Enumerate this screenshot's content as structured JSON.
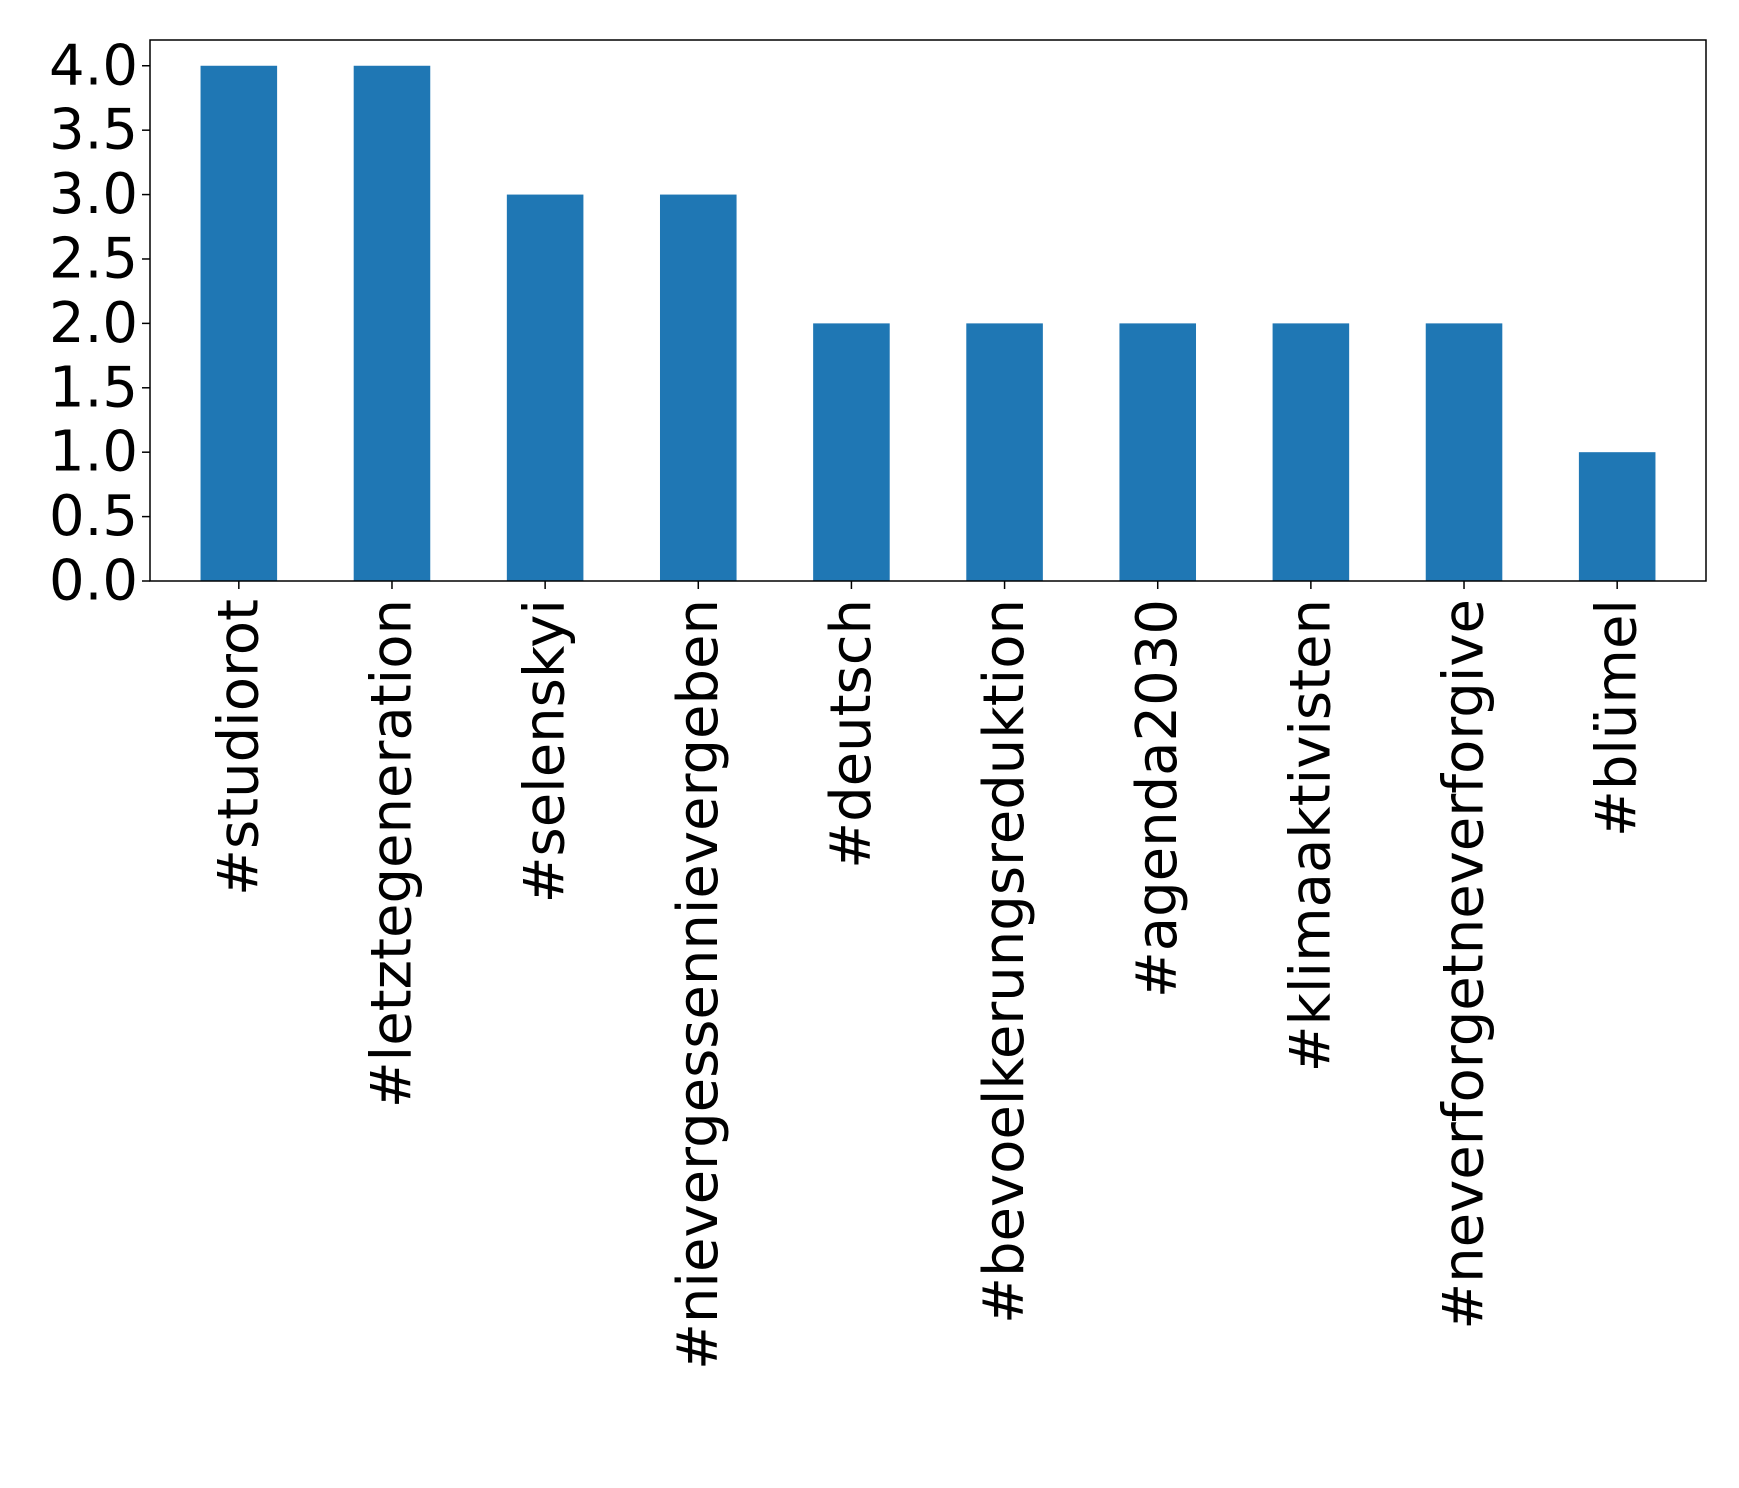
{
  "chart_data": {
    "type": "bar",
    "title": "",
    "xlabel": "",
    "ylabel": "",
    "categories": [
      "#studiorot",
      "#letztegeneration",
      "#selenskyi",
      "#nievergessennievergeben",
      "#deutsch",
      "#bevoelkerungsreduktion",
      "#agenda2030",
      "#klimaaktivisten",
      "#neverforgetneverforgive",
      "#blümel"
    ],
    "values": [
      4,
      4,
      3,
      3,
      2,
      2,
      2,
      2,
      2,
      1
    ],
    "ylim": [
      0,
      4.2
    ],
    "yticks": [
      "0.0",
      "0.5",
      "1.0",
      "1.5",
      "2.0",
      "2.5",
      "3.0",
      "3.5",
      "4.0"
    ],
    "bar_color": "#1f77b4",
    "grid": false,
    "legend": "none"
  }
}
